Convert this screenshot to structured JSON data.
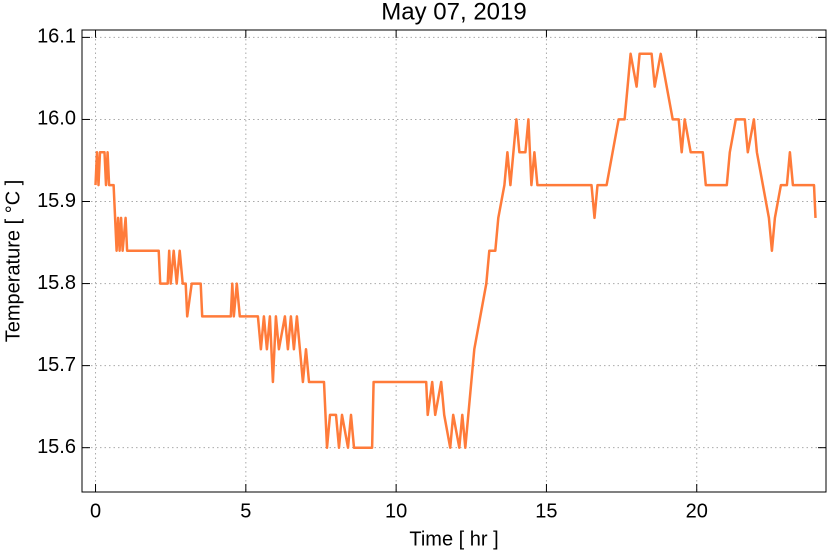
{
  "chart_data": {
    "type": "line",
    "title": "May 07, 2019",
    "x_label": "Time [ hr ]",
    "y_label": "Temperature [ °C ]",
    "xlim": [
      -0.45,
      24.3
    ],
    "ylim": [
      15.546,
      16.109
    ],
    "xticks": [
      0,
      5,
      10,
      15,
      20
    ],
    "yticks": [
      15.6,
      15.7,
      15.8,
      15.9,
      {
        "value": 16,
        "label": "16.0"
      },
      16.1
    ],
    "grid": true,
    "series": [
      {
        "color": "#ff7b3a",
        "x": [
          0,
          0.05,
          0.1,
          0.15,
          0.3,
          0.35,
          0.4,
          0.45,
          0.6,
          0.65,
          0.7,
          0.75,
          0.8,
          0.85,
          0.9,
          1.0,
          1.05,
          2.1,
          2.15,
          2.4,
          2.45,
          2.5,
          2.6,
          2.7,
          2.8,
          2.9,
          3.0,
          3.05,
          3.2,
          3.5,
          3.55,
          4.5,
          4.55,
          4.6,
          4.7,
          4.8,
          5.4,
          5.5,
          5.6,
          5.7,
          5.8,
          5.9,
          6.0,
          6.1,
          6.3,
          6.4,
          6.5,
          6.6,
          6.7,
          6.8,
          6.9,
          7.0,
          7.1,
          7.6,
          7.65,
          7.7,
          7.8,
          8.0,
          8.1,
          8.2,
          8.4,
          8.5,
          8.6,
          9.2,
          9.25,
          11.0,
          11.05,
          11.2,
          11.3,
          11.5,
          11.6,
          11.8,
          11.9,
          12.1,
          12.2,
          12.3,
          12.4,
          12.5,
          12.6,
          12.8,
          13.0,
          13.1,
          13.3,
          13.4,
          13.6,
          13.7,
          13.8,
          13.9,
          14.0,
          14.1,
          14.3,
          14.4,
          14.5,
          14.6,
          14.7,
          16.5,
          16.6,
          16.7,
          17.0,
          17.2,
          17.4,
          17.6,
          17.7,
          17.8,
          18.0,
          18.1,
          18.5,
          18.6,
          18.8,
          19.0,
          19.2,
          19.4,
          19.5,
          19.6,
          19.8,
          20.2,
          20.3,
          21.0,
          21.1,
          21.3,
          21.6,
          21.7,
          21.9,
          22.0,
          22.2,
          22.4,
          22.5,
          22.6,
          22.8,
          23.0,
          23.1,
          23.2,
          23.9,
          23.95
        ],
        "values": [
          15.92,
          15.96,
          15.92,
          15.96,
          15.96,
          15.92,
          15.96,
          15.92,
          15.92,
          15.88,
          15.84,
          15.88,
          15.84,
          15.88,
          15.84,
          15.88,
          15.84,
          15.84,
          15.8,
          15.8,
          15.84,
          15.8,
          15.84,
          15.8,
          15.84,
          15.8,
          15.8,
          15.76,
          15.8,
          15.8,
          15.76,
          15.76,
          15.8,
          15.76,
          15.8,
          15.76,
          15.76,
          15.72,
          15.76,
          15.72,
          15.76,
          15.68,
          15.76,
          15.72,
          15.76,
          15.72,
          15.76,
          15.72,
          15.76,
          15.72,
          15.68,
          15.72,
          15.68,
          15.68,
          15.64,
          15.6,
          15.64,
          15.64,
          15.6,
          15.64,
          15.6,
          15.64,
          15.6,
          15.6,
          15.68,
          15.68,
          15.64,
          15.68,
          15.64,
          15.68,
          15.64,
          15.6,
          15.64,
          15.6,
          15.64,
          15.6,
          15.64,
          15.68,
          15.72,
          15.76,
          15.8,
          15.84,
          15.84,
          15.88,
          15.92,
          15.96,
          15.92,
          15.96,
          16.0,
          15.96,
          15.96,
          16.0,
          15.92,
          15.96,
          15.92,
          15.92,
          15.88,
          15.92,
          15.92,
          15.96,
          16.0,
          16.0,
          16.04,
          16.08,
          16.04,
          16.08,
          16.08,
          16.04,
          16.08,
          16.04,
          16.0,
          16.0,
          15.96,
          16.0,
          15.96,
          15.96,
          15.92,
          15.92,
          15.96,
          16.0,
          16.0,
          15.96,
          16.0,
          15.96,
          15.92,
          15.88,
          15.84,
          15.88,
          15.92,
          15.92,
          15.96,
          15.92,
          15.92,
          15.88
        ]
      }
    ]
  }
}
